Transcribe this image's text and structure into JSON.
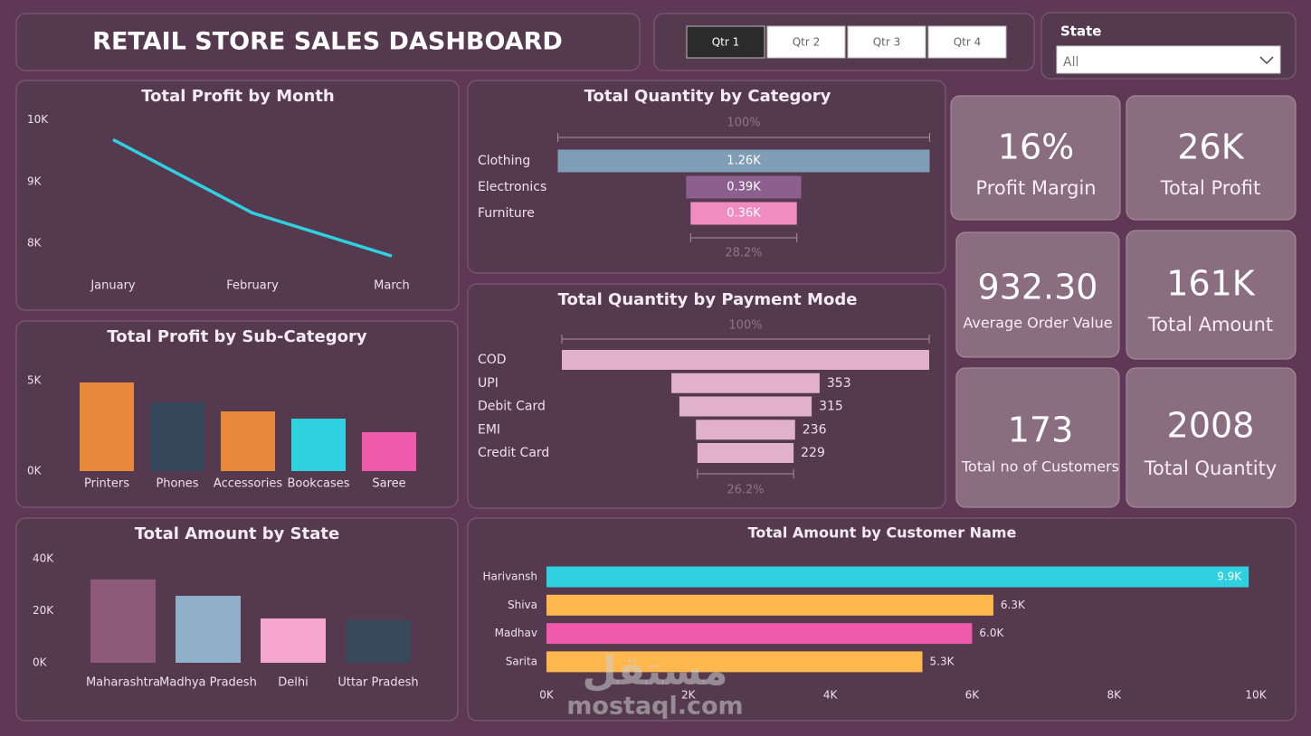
{
  "header": {
    "title": "RETAIL STORE SALES DASHBOARD"
  },
  "quarter_slicer": {
    "options": [
      "Qtr 1",
      "Qtr 2",
      "Qtr 3",
      "Qtr 4"
    ],
    "selected": 0
  },
  "state_slicer": {
    "label": "State",
    "value": "All"
  },
  "cards": [
    {
      "value": "16%",
      "label": "Profit Margin"
    },
    {
      "value": "26K",
      "label": "Total Profit"
    },
    {
      "value": "932.30",
      "label": "Average Order Value"
    },
    {
      "value": "161K",
      "label": "Total Amount"
    },
    {
      "value": "173",
      "label": "Total no of Customers"
    },
    {
      "value": "2008",
      "label": "Total Quantity"
    }
  ],
  "watermark": {
    "arabic": "مستقل",
    "latin": "mostaql.com"
  },
  "chart_data": [
    {
      "type": "line",
      "title": "Total Profit by Month",
      "categories": [
        "January",
        "February",
        "March"
      ],
      "values": [
        9680,
        8490,
        7790
      ],
      "color": "#2fd0e0",
      "ylim": [
        7500,
        10200
      ],
      "yticks": [
        {
          "value": 8000,
          "label": "8K"
        },
        {
          "value": 9000,
          "label": "9K"
        },
        {
          "value": 10000,
          "label": "10K"
        }
      ],
      "grid": false
    },
    {
      "type": "bar",
      "title": "Total Profit by Sub-Category",
      "categories": [
        "Printers",
        "Phones",
        "Accessories",
        "Bookcases",
        "Saree"
      ],
      "values": [
        4900,
        3800,
        3300,
        2900,
        2150
      ],
      "colors": [
        "#e8883a",
        "#35475a",
        "#e8883a",
        "#2fd0e0",
        "#f05aaa"
      ],
      "ylim": [
        0,
        5200
      ],
      "yticks": [
        {
          "value": 0,
          "label": "0K"
        },
        {
          "value": 5000,
          "label": "5K"
        }
      ],
      "grid": false
    },
    {
      "type": "bar",
      "title": "Total Amount by State",
      "categories": [
        "Maharashtra",
        "Madhya Pradesh",
        "Delhi",
        "Uttar Pradesh"
      ],
      "values": [
        32000,
        25700,
        17000,
        16300
      ],
      "colors": [
        "#8e5a7a",
        "#8fb0c8",
        "#f5a6cf",
        "#364a5c"
      ],
      "ylim": [
        0,
        42000
      ],
      "yticks": [
        {
          "value": 0,
          "label": "0K"
        },
        {
          "value": 20000,
          "label": "20K"
        },
        {
          "value": 40000,
          "label": "40K"
        }
      ],
      "grid": false
    },
    {
      "type": "funnel",
      "title": "Total Quantity by Category",
      "categories": [
        "Clothing",
        "Electronics",
        "Furniture"
      ],
      "values": [
        1260,
        390,
        360
      ],
      "value_labels": [
        "1.26K",
        "0.39K",
        "0.36K"
      ],
      "colors": [
        "#7f9db5",
        "#8c5f8e",
        "#f08cc0"
      ],
      "label_position": "inside",
      "top_percent": "100%",
      "bottom_percent": "28.2%"
    },
    {
      "type": "funnel",
      "title": "Total Quantity by Payment Mode",
      "categories": [
        "COD",
        "UPI",
        "Debit Card",
        "EMI",
        "Credit Card"
      ],
      "values": [
        875,
        353,
        315,
        236,
        229
      ],
      "value_labels": [
        null,
        "353",
        "315",
        "236",
        "229"
      ],
      "colors": [
        "#e0b0cc",
        "#e0b0cc",
        "#e0b0cc",
        "#e0b0cc",
        "#e0b0cc"
      ],
      "label_position": "outside",
      "top_percent": "100%",
      "bottom_percent": "26.2%"
    },
    {
      "type": "hbar",
      "title": "Total Amount by Customer Name",
      "categories": [
        "Harivansh",
        "Shiva",
        "Madhav",
        "Sarita"
      ],
      "values": [
        9900,
        6300,
        6000,
        5300
      ],
      "value_labels": [
        "9.9K",
        "6.3K",
        "6.0K",
        "5.3K"
      ],
      "colors": [
        "#2fd0e0",
        "#ffb84d",
        "#f05aaa",
        "#ffb84d"
      ],
      "xlim": [
        0,
        10000
      ],
      "xticks": [
        {
          "value": 0,
          "label": "0K"
        },
        {
          "value": 2000,
          "label": "2K"
        },
        {
          "value": 4000,
          "label": "4K"
        },
        {
          "value": 6000,
          "label": "6K"
        },
        {
          "value": 8000,
          "label": "8K"
        },
        {
          "value": 10000,
          "label": "10K"
        }
      ],
      "grid": false
    }
  ]
}
